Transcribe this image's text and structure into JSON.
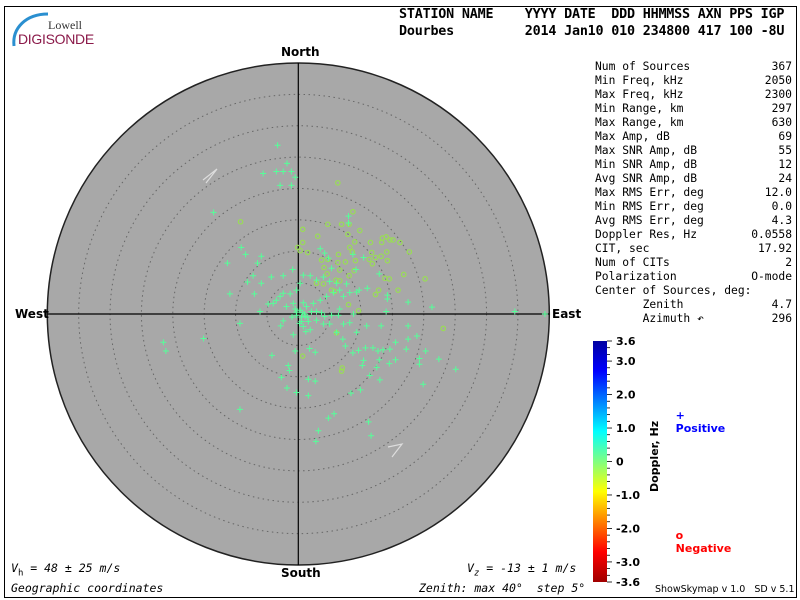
{
  "logo": {
    "top": "Lowell",
    "bottom": "DIGISONDE"
  },
  "header": {
    "line1": "STATION NAME    YYYY DATE  DDD HHMMSS AXN PPS IGP",
    "line2": "Dourbes         2014 Jan10 010 234800 417 100 -8U"
  },
  "directions": {
    "north": "North",
    "south": "South",
    "east": "East",
    "west": "West"
  },
  "stats": [
    {
      "label": "Num of Sources",
      "value": "367"
    },
    {
      "label": "Min Freq, kHz",
      "value": "2050"
    },
    {
      "label": "Max Freq, kHz",
      "value": "2300"
    },
    {
      "label": "Min Range, km",
      "value": "297"
    },
    {
      "label": "Max Range, km",
      "value": "630"
    },
    {
      "label": "Max Amp, dB",
      "value": "69"
    },
    {
      "label": "Max SNR Amp, dB",
      "value": "55"
    },
    {
      "label": "Min SNR Amp, dB",
      "value": "12"
    },
    {
      "label": "Avg SNR Amp, dB",
      "value": "24"
    },
    {
      "label": "Max RMS Err, deg",
      "value": "12.0"
    },
    {
      "label": "Min RMS Err, deg",
      "value": "0.0"
    },
    {
      "label": "Avg RMS Err, deg",
      "value": "4.3"
    },
    {
      "label": "Doppler Res, Hz",
      "value": "0.0558"
    },
    {
      "label": "CIT, sec",
      "value": "17.92"
    },
    {
      "label": "Num of CITs",
      "value": "2"
    },
    {
      "label": "Polarization",
      "value": "O-mode"
    },
    {
      "label": "Center of Sources, deg:",
      "value": ""
    },
    {
      "label": "       Zenith",
      "value": "4.7"
    },
    {
      "label": "       Azimuth ↶",
      "value": "296"
    }
  ],
  "colorbar": {
    "title": "Doppler, Hz",
    "ticks": [
      "3.6",
      "3.0",
      "2.0",
      "1.0",
      "0",
      "-1.0",
      "-2.0",
      "-3.0",
      "-3.6"
    ],
    "range": [
      -3.6,
      3.6
    ],
    "colors": [
      "#0000a0",
      "#0000ff",
      "#0080ff",
      "#00ffff",
      "#80ff80",
      "#ffff00",
      "#ff8000",
      "#ff0000",
      "#a00000"
    ]
  },
  "legend": {
    "positive": {
      "symbol": "+",
      "label": "Positive",
      "color": "#0000ff"
    },
    "negative": {
      "symbol": "o",
      "label": "Negative",
      "color": "#ff0000"
    }
  },
  "footer": {
    "vh_sym": "V",
    "vh_sub": "h",
    "vh_text": " = 48 ± 25 m/s",
    "vz_sym": "V",
    "vz_sub": "z",
    "vz_text": " = -13 ± 1 m/s",
    "coords": "Geographic coordinates",
    "zenith": "Zenith: max 40°  step 5°",
    "version": "ShowSkymap v 1.0   SD v 5.1"
  },
  "chart_data": {
    "type": "scatter",
    "coordinates": "polar sky map, zenith angle (deg) radial, east/north offsets in degrees",
    "zenith_max": 40,
    "zenith_step": 5,
    "background": "#a8a8a8",
    "positive_color": "#55ff99",
    "negative_color": "#99dd55",
    "positive": [
      [
        -3.3,
        26.9
      ],
      [
        -1.8,
        24.0
      ],
      [
        -5.6,
        22.4
      ],
      [
        -3.5,
        22.7
      ],
      [
        -2.4,
        22.7
      ],
      [
        -1.1,
        22.7
      ],
      [
        -0.5,
        21.8
      ],
      [
        -2.9,
        20.5
      ],
      [
        -1.1,
        20.5
      ],
      [
        -13.5,
        16.2
      ],
      [
        -9.1,
        10.6
      ],
      [
        -8.4,
        9.5
      ],
      [
        -5.9,
        9.2
      ],
      [
        -11.3,
        8.1
      ],
      [
        -6.5,
        8.1
      ],
      [
        -7.2,
        6.1
      ],
      [
        -8.1,
        5.1
      ],
      [
        -5.9,
        4.9
      ],
      [
        -4.3,
        5.9
      ],
      [
        -2.4,
        6.1
      ],
      [
        -0.9,
        7.1
      ],
      [
        -10.9,
        3.2
      ],
      [
        -7.0,
        3.2
      ],
      [
        3.5,
        10.4
      ],
      [
        4.2,
        9.7
      ],
      [
        4.8,
        8.9
      ],
      [
        5.3,
        7.3
      ],
      [
        8.0,
        15.6
      ],
      [
        8.0,
        14.5
      ],
      [
        10.4,
        9.0
      ],
      [
        9.2,
        7.1
      ],
      [
        8.7,
        9.5
      ],
      [
        12.9,
        6.4
      ],
      [
        11.0,
        4.1
      ],
      [
        14.2,
        3.0
      ],
      [
        14.2,
        2.4
      ],
      [
        17.5,
        1.9
      ],
      [
        21.3,
        1.1
      ],
      [
        34.5,
        0.4
      ],
      [
        39.3,
        0.0
      ],
      [
        14.0,
        0.4
      ],
      [
        8.8,
        0.0
      ],
      [
        6.6,
        0.8
      ],
      [
        -6.1,
        0.4
      ],
      [
        -9.3,
        -1.5
      ],
      [
        -15.1,
        -3.9
      ],
      [
        -21.5,
        -4.5
      ],
      [
        -21.1,
        -5.9
      ],
      [
        -4.2,
        -6.6
      ],
      [
        -1.6,
        -8.2
      ],
      [
        -1.4,
        -9.0
      ],
      [
        -2.7,
        -10.1
      ],
      [
        -1.8,
        -11.8
      ],
      [
        -0.3,
        -12.5
      ],
      [
        1.6,
        -13.0
      ],
      [
        1.8,
        -5.5
      ],
      [
        2.7,
        -6.1
      ],
      [
        1.6,
        -10.4
      ],
      [
        2.7,
        -10.7
      ],
      [
        -0.5,
        -5.9
      ],
      [
        -0.8,
        -3.3
      ],
      [
        -2.8,
        -1.9
      ],
      [
        -2.4,
        -1.1
      ],
      [
        7.2,
        -1.6
      ],
      [
        8.2,
        -1.4
      ],
      [
        10.9,
        -1.9
      ],
      [
        13.2,
        -1.9
      ],
      [
        17.5,
        -1.9
      ],
      [
        7.1,
        -4.0
      ],
      [
        7.5,
        -5.1
      ],
      [
        8.7,
        -6.2
      ],
      [
        9.6,
        -5.8
      ],
      [
        10.7,
        -5.4
      ],
      [
        11.9,
        -5.4
      ],
      [
        12.7,
        -5.9
      ],
      [
        13.5,
        -5.7
      ],
      [
        14.6,
        -5.6
      ],
      [
        15.5,
        -4.5
      ],
      [
        17.2,
        -5.6
      ],
      [
        18.9,
        -3.5
      ],
      [
        17.5,
        -4.0
      ],
      [
        20.3,
        -5.9
      ],
      [
        19.3,
        -7.1
      ],
      [
        19.3,
        -8.0
      ],
      [
        22.4,
        -7.2
      ],
      [
        25.1,
        -8.8
      ],
      [
        15.5,
        -7.3
      ],
      [
        14.5,
        -7.9
      ],
      [
        12.9,
        -7.3
      ],
      [
        10.4,
        -7.4
      ],
      [
        10.2,
        -8.2
      ],
      [
        12.5,
        -8.5
      ],
      [
        11.4,
        -9.8
      ],
      [
        13.0,
        -10.5
      ],
      [
        19.9,
        -11.2
      ],
      [
        9.9,
        -12.1
      ],
      [
        8.4,
        -12.6
      ],
      [
        5.7,
        -15.9
      ],
      [
        4.8,
        -16.6
      ],
      [
        11.2,
        -17.2
      ],
      [
        11.6,
        -19.4
      ],
      [
        3.2,
        -18.6
      ],
      [
        2.8,
        -20.3
      ],
      [
        -9.3,
        -15.2
      ],
      [
        9.3,
        -2.9
      ],
      [
        6.1,
        -2.9
      ],
      [
        5.0,
        -1.6
      ],
      [
        4.0,
        -1.6
      ],
      [
        2.9,
        -1.0
      ],
      [
        1.9,
        -2.5
      ],
      [
        0.8,
        -2.0
      ],
      [
        1.1,
        -0.4
      ],
      [
        0.3,
        0.6
      ],
      [
        1.3,
        1.2
      ],
      [
        2.4,
        1.7
      ],
      [
        3.5,
        2.2
      ],
      [
        4.5,
        2.8
      ],
      [
        5.6,
        3.4
      ],
      [
        6.6,
        3.8
      ],
      [
        7.2,
        2.8
      ],
      [
        8.2,
        3.4
      ],
      [
        9.3,
        3.5
      ],
      [
        6.1,
        4.9
      ],
      [
        5.0,
        5.2
      ],
      [
        4.0,
        5.9
      ],
      [
        2.9,
        5.4
      ],
      [
        1.9,
        6.1
      ],
      [
        0.8,
        6.2
      ],
      [
        0.3,
        4.9
      ],
      [
        -0.3,
        3.8
      ],
      [
        -1.3,
        3.2
      ],
      [
        -2.4,
        3.3
      ],
      [
        -2.9,
        2.8
      ],
      [
        -3.5,
        2.2
      ],
      [
        -4.0,
        1.7
      ],
      [
        -4.8,
        1.6
      ],
      [
        -1.9,
        1.2
      ],
      [
        -0.8,
        1.7
      ],
      [
        -0.3,
        -0.2
      ],
      [
        0.5,
        -1.2
      ],
      [
        1.6,
        -1.2
      ],
      [
        2.1,
        0.4
      ],
      [
        2.9,
        0.4
      ],
      [
        3.7,
        0.2
      ],
      [
        4.2,
        -0.4
      ],
      [
        5.3,
        -0.2
      ],
      [
        6.4,
        -0.2
      ],
      [
        7.7,
        4.8
      ],
      [
        9.7,
        3.8
      ],
      [
        0.5,
        -0.5
      ],
      [
        1.0,
        0.0
      ],
      [
        -0.5,
        0.8
      ],
      [
        1.5,
        -0.5
      ],
      [
        0.8,
        1.8
      ],
      [
        -1.0,
        -0.5
      ],
      [
        0.2,
        -1.5
      ],
      [
        1.2,
        -2.8
      ],
      [
        -0.3,
        0.3
      ],
      [
        0.7,
        0.2
      ]
    ],
    "negative": [
      [
        6.3,
        20.9
      ],
      [
        8.7,
        16.3
      ],
      [
        -9.2,
        14.7
      ],
      [
        0.7,
        13.5
      ],
      [
        4.7,
        14.3
      ],
      [
        6.9,
        14.3
      ],
      [
        8.1,
        14.3
      ],
      [
        9.8,
        13.3
      ],
      [
        3.1,
        12.4
      ],
      [
        7.9,
        12.7
      ],
      [
        9.0,
        11.5
      ],
      [
        13.4,
        12.1
      ],
      [
        14.0,
        12.3
      ],
      [
        14.6,
        11.8
      ],
      [
        15.1,
        11.8
      ],
      [
        16.2,
        11.4
      ],
      [
        11.5,
        11.4
      ],
      [
        13.3,
        11.4
      ],
      [
        0.7,
        11.4
      ],
      [
        -0.1,
        10.6
      ],
      [
        0.3,
        10.1
      ],
      [
        1.5,
        9.8
      ],
      [
        8.2,
        10.6
      ],
      [
        8.6,
        9.9
      ],
      [
        6.4,
        9.5
      ],
      [
        14.1,
        9.9
      ],
      [
        11.7,
        9.8
      ],
      [
        17.7,
        9.9
      ],
      [
        12.3,
        9.0
      ],
      [
        13.2,
        9.2
      ],
      [
        11.3,
        8.7
      ],
      [
        11.8,
        8.0
      ],
      [
        14.2,
        8.5
      ],
      [
        9.1,
        8.5
      ],
      [
        7.5,
        8.3
      ],
      [
        6.3,
        8.2
      ],
      [
        4.7,
        8.7
      ],
      [
        3.7,
        8.6
      ],
      [
        4.1,
        7.4
      ],
      [
        6.6,
        7.0
      ],
      [
        8.9,
        6.9
      ],
      [
        8.1,
        6.1
      ],
      [
        13.8,
        5.7
      ],
      [
        14.5,
        5.6
      ],
      [
        16.8,
        6.3
      ],
      [
        20.2,
        5.6
      ],
      [
        6.0,
        5.4
      ],
      [
        6.6,
        5.3
      ],
      [
        4.6,
        6.4
      ],
      [
        2.9,
        4.9
      ],
      [
        4.0,
        4.8
      ],
      [
        5.3,
        3.8
      ],
      [
        5.8,
        3.6
      ],
      [
        15.9,
        3.8
      ],
      [
        12.8,
        3.8
      ],
      [
        12.3,
        3.1
      ],
      [
        9.6,
        0.5
      ],
      [
        8.0,
        1.5
      ],
      [
        23.1,
        -2.3
      ],
      [
        0.7,
        -6.7
      ],
      [
        6.9,
        -9.1
      ],
      [
        7.0,
        -8.6
      ],
      [
        6.1,
        -3.0
      ]
    ]
  }
}
